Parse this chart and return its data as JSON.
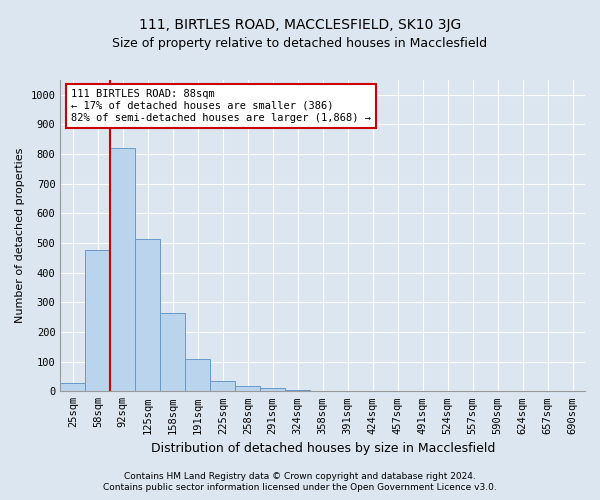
{
  "title1": "111, BIRTLES ROAD, MACCLESFIELD, SK10 3JG",
  "title2": "Size of property relative to detached houses in Macclesfield",
  "xlabel": "Distribution of detached houses by size in Macclesfield",
  "ylabel": "Number of detached properties",
  "footnote1": "Contains HM Land Registry data © Crown copyright and database right 2024.",
  "footnote2": "Contains public sector information licensed under the Open Government Licence v3.0.",
  "bar_categories": [
    "25sqm",
    "58sqm",
    "92sqm",
    "125sqm",
    "158sqm",
    "191sqm",
    "225sqm",
    "258sqm",
    "291sqm",
    "324sqm",
    "358sqm",
    "391sqm",
    "424sqm",
    "457sqm",
    "491sqm",
    "524sqm",
    "557sqm",
    "590sqm",
    "624sqm",
    "657sqm",
    "690sqm"
  ],
  "bar_values": [
    27,
    477,
    820,
    515,
    265,
    110,
    35,
    17,
    10,
    4,
    0,
    0,
    0,
    0,
    0,
    0,
    0,
    0,
    0,
    0,
    0
  ],
  "bar_color": "#bad4ee",
  "bar_edge_color": "#6699cc",
  "property_line_color": "#cc0000",
  "annotation_text": "111 BIRTLES ROAD: 88sqm\n← 17% of detached houses are smaller (386)\n82% of semi-detached houses are larger (1,868) →",
  "annotation_box_color": "#ffffff",
  "annotation_box_edge_color": "#cc0000",
  "ylim": [
    0,
    1050
  ],
  "yticks": [
    0,
    100,
    200,
    300,
    400,
    500,
    600,
    700,
    800,
    900,
    1000
  ],
  "background_color": "#dce6f0",
  "plot_bg_color": "#dce6f0",
  "grid_color": "#ffffff",
  "title1_fontsize": 10,
  "title2_fontsize": 9,
  "xlabel_fontsize": 9,
  "ylabel_fontsize": 8,
  "tick_fontsize": 7.5,
  "annot_fontsize": 7.5,
  "footnote_fontsize": 6.5
}
